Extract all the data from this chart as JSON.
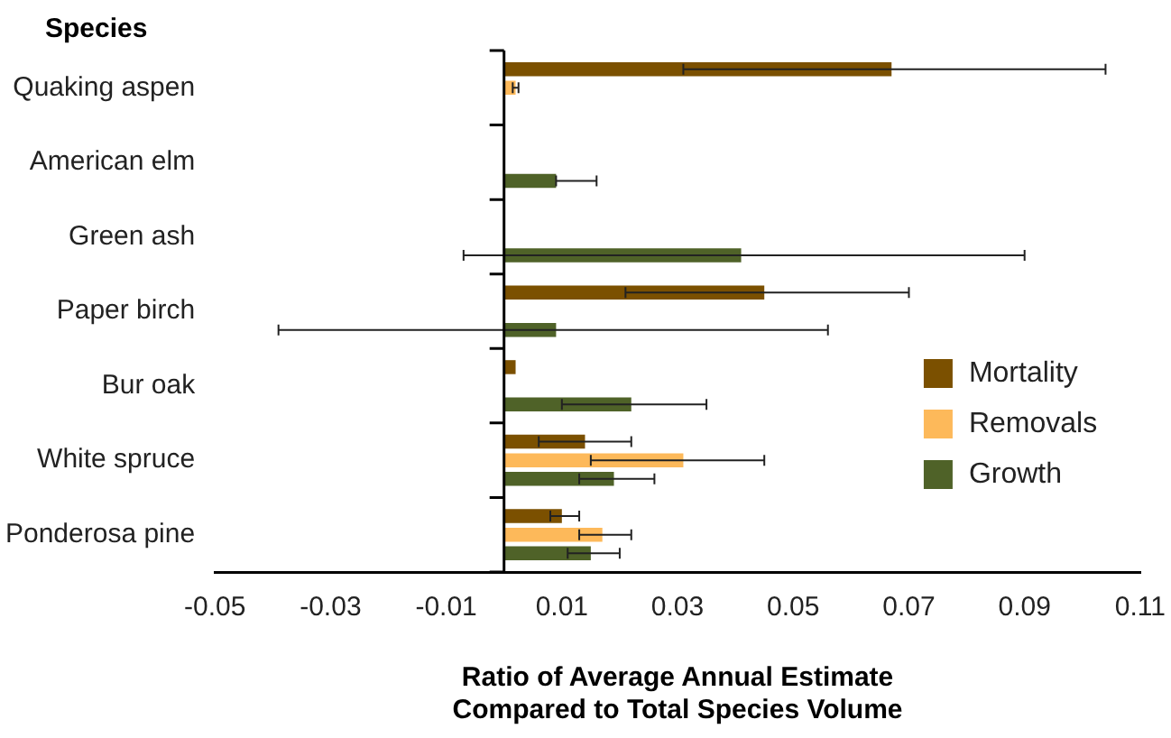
{
  "chart_data": {
    "type": "bar",
    "orientation": "horizontal",
    "ylabel": "Species",
    "xlabel": "Ratio of Average Annual Estimate\nCompared to Total Species Volume",
    "categories": [
      "Quaking aspen",
      "American elm",
      "Green ash",
      "Paper birch",
      "Bur oak",
      "White spruce",
      "Ponderosa pine"
    ],
    "series": [
      {
        "name": "Mortality",
        "color": "#7b5000",
        "values": [
          0.067,
          0,
          0,
          0.045,
          0.002,
          0.014,
          0.01
        ],
        "errors": [
          [
            0.031,
            0.104
          ],
          null,
          null,
          [
            0.021,
            0.07
          ],
          null,
          [
            0.006,
            0.022
          ],
          [
            0.008,
            0.013
          ]
        ]
      },
      {
        "name": "Removals",
        "color": "#fdb95a",
        "values": [
          0.002,
          0,
          0,
          0,
          0,
          0.031,
          0.017
        ],
        "errors": [
          [
            0.0015,
            0.0025
          ],
          null,
          null,
          null,
          null,
          [
            0.015,
            0.045
          ],
          [
            0.013,
            0.022
          ]
        ]
      },
      {
        "name": "Growth",
        "color": "#4f6228",
        "values": [
          0,
          0.009,
          0.041,
          0.009,
          0.022,
          0.019,
          0.015
        ],
        "errors": [
          null,
          [
            0.009,
            0.016
          ],
          [
            -0.007,
            0.09
          ],
          [
            -0.039,
            0.056
          ],
          [
            0.01,
            0.035
          ],
          [
            0.013,
            0.026
          ],
          [
            0.011,
            0.02
          ]
        ]
      }
    ],
    "xlim": [
      -0.05,
      0.11
    ],
    "xticks": [
      -0.05,
      -0.03,
      -0.01,
      0.01,
      0.03,
      0.05,
      0.07,
      0.09,
      0.11
    ],
    "grid": false,
    "legend": "right"
  }
}
